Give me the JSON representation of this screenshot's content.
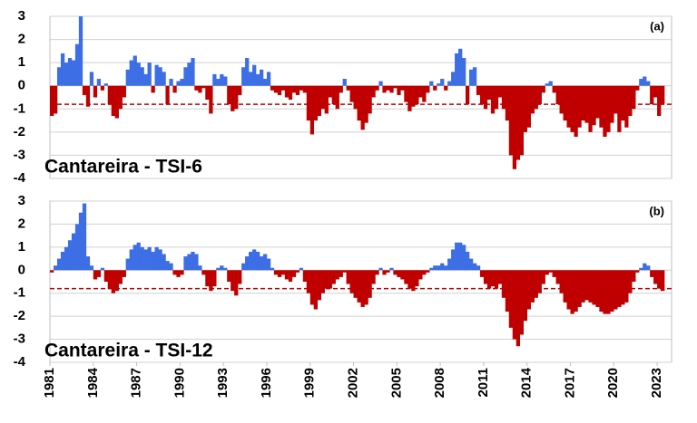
{
  "chart_data": [
    {
      "type": "bar",
      "title": "Cantareira - TSI-6",
      "panel_label": "(a)",
      "x": [
        1981,
        1981.25,
        1981.5,
        1981.75,
        1982,
        1982.25,
        1982.5,
        1982.75,
        1983,
        1983.25,
        1983.5,
        1983.75,
        1984,
        1984.25,
        1984.5,
        1984.75,
        1985,
        1985.25,
        1985.5,
        1985.75,
        1986,
        1986.25,
        1986.5,
        1986.75,
        1987,
        1987.25,
        1987.5,
        1987.75,
        1988,
        1988.25,
        1988.5,
        1988.75,
        1989,
        1989.25,
        1989.5,
        1989.75,
        1990,
        1990.25,
        1990.5,
        1990.75,
        1991,
        1991.25,
        1991.5,
        1991.75,
        1992,
        1992.25,
        1992.5,
        1992.75,
        1993,
        1993.25,
        1993.5,
        1993.75,
        1994,
        1994.25,
        1994.5,
        1994.75,
        1995,
        1995.25,
        1995.5,
        1995.75,
        1996,
        1996.25,
        1996.5,
        1996.75,
        1997,
        1997.25,
        1997.5,
        1997.75,
        1998,
        1998.25,
        1998.5,
        1998.75,
        1999,
        1999.25,
        1999.5,
        1999.75,
        2000,
        2000.25,
        2000.5,
        2000.75,
        2001,
        2001.25,
        2001.5,
        2001.75,
        2002,
        2002.25,
        2002.5,
        2002.75,
        2003,
        2003.25,
        2003.5,
        2003.75,
        2004,
        2004.25,
        2004.5,
        2004.75,
        2005,
        2005.25,
        2005.5,
        2005.75,
        2006,
        2006.25,
        2006.5,
        2006.75,
        2007,
        2007.25,
        2007.5,
        2007.75,
        2008,
        2008.25,
        2008.5,
        2008.75,
        2009,
        2009.25,
        2009.5,
        2009.75,
        2010,
        2010.25,
        2010.5,
        2010.75,
        2011,
        2011.25,
        2011.5,
        2011.75,
        2012,
        2012.25,
        2012.5,
        2012.75,
        2013,
        2013.25,
        2013.5,
        2013.75,
        2014,
        2014.25,
        2014.5,
        2014.75,
        2015,
        2015.25,
        2015.5,
        2015.75,
        2016,
        2016.25,
        2016.5,
        2016.75,
        2017,
        2017.25,
        2017.5,
        2017.75,
        2018,
        2018.25,
        2018.5,
        2018.75,
        2019,
        2019.25,
        2019.5,
        2019.75,
        2020,
        2020.25,
        2020.5,
        2020.75,
        2021,
        2021.25,
        2021.5,
        2021.75,
        2022,
        2022.25,
        2022.5,
        2022.75,
        2023,
        2023.25
      ],
      "values": [
        -1.3,
        -1.2,
        0.8,
        1.4,
        1.0,
        1.2,
        1.1,
        1.8,
        3.0,
        -0.4,
        -0.9,
        0.6,
        -0.5,
        0.3,
        -0.2,
        0.1,
        -0.8,
        -1.3,
        -1.4,
        -1.0,
        -0.5,
        0.7,
        1.1,
        1.3,
        1.0,
        0.8,
        0.5,
        1.0,
        -0.3,
        0.9,
        0.8,
        0.6,
        -0.8,
        0.3,
        -0.3,
        0.2,
        0.3,
        0.8,
        1.0,
        1.2,
        -0.2,
        -0.3,
        -0.1,
        -0.6,
        -1.2,
        0.5,
        0.3,
        0.5,
        0.4,
        -0.8,
        -1.1,
        -1.0,
        -0.4,
        0.8,
        1.2,
        0.6,
        0.9,
        0.5,
        0.7,
        0.3,
        0.6,
        -0.2,
        -0.3,
        -0.4,
        -0.2,
        -0.5,
        -0.6,
        -0.3,
        -0.4,
        -0.2,
        -0.3,
        -1.5,
        -2.1,
        -1.5,
        -1.3,
        -1.0,
        -1.2,
        -0.5,
        -0.8,
        -1.0,
        -0.3,
        0.3,
        -0.2,
        -0.7,
        -1.0,
        -1.5,
        -1.9,
        -1.6,
        -1.2,
        -0.5,
        -0.2,
        0.2,
        -0.3,
        -0.2,
        -0.3,
        -0.1,
        -0.4,
        -0.2,
        -0.7,
        -1.1,
        -0.9,
        -0.8,
        -0.5,
        -0.7,
        -0.3,
        0.2,
        -0.2,
        0.1,
        0.3,
        -0.2,
        0.2,
        0.6,
        1.4,
        1.6,
        1.2,
        -0.8,
        0.7,
        0.8,
        -0.4,
        -0.8,
        -1.0,
        -0.6,
        -1.2,
        -1.0,
        -0.5,
        -1.0,
        -1.5,
        -3.0,
        -3.6,
        -3.2,
        -3.0,
        -2.0,
        -1.8,
        -1.2,
        -1.0,
        -0.8,
        -0.3,
        0.1,
        0.2,
        -0.3,
        -0.8,
        -1.2,
        -1.5,
        -1.8,
        -2.0,
        -2.2,
        -1.8,
        -1.5,
        -1.6,
        -2.0,
        -1.7,
        -1.4,
        -1.8,
        -2.2,
        -2.0,
        -1.6,
        -1.2,
        -2.0,
        -1.5,
        -1.8,
        -1.3,
        -1.0,
        -0.2,
        0.3,
        0.4,
        0.2,
        -0.8,
        -0.5,
        -1.3,
        -0.8
      ],
      "positive_color": "#3d6ee6",
      "negative_color": "#c00000",
      "threshold": -0.8,
      "threshold_color": "#c00000",
      "xlim": [
        1981,
        2024
      ],
      "ylim": [
        -4,
        3
      ],
      "yticks": [
        3,
        2,
        1,
        0,
        -1,
        -2,
        -3,
        -4
      ],
      "grid": true
    },
    {
      "type": "bar",
      "title": "Cantareira - TSI-12",
      "panel_label": "(b)",
      "x": [
        1981,
        1981.25,
        1981.5,
        1981.75,
        1982,
        1982.25,
        1982.5,
        1982.75,
        1983,
        1983.25,
        1983.5,
        1983.75,
        1984,
        1984.25,
        1984.5,
        1984.75,
        1985,
        1985.25,
        1985.5,
        1985.75,
        1986,
        1986.25,
        1986.5,
        1986.75,
        1987,
        1987.25,
        1987.5,
        1987.75,
        1988,
        1988.25,
        1988.5,
        1988.75,
        1989,
        1989.25,
        1989.5,
        1989.75,
        1990,
        1990.25,
        1990.5,
        1990.75,
        1991,
        1991.25,
        1991.5,
        1991.75,
        1992,
        1992.25,
        1992.5,
        1992.75,
        1993,
        1993.25,
        1993.5,
        1993.75,
        1994,
        1994.25,
        1994.5,
        1994.75,
        1995,
        1995.25,
        1995.5,
        1995.75,
        1996,
        1996.25,
        1996.5,
        1996.75,
        1997,
        1997.25,
        1997.5,
        1997.75,
        1998,
        1998.25,
        1998.5,
        1998.75,
        1999,
        1999.25,
        1999.5,
        1999.75,
        2000,
        2000.25,
        2000.5,
        2000.75,
        2001,
        2001.25,
        2001.5,
        2001.75,
        2002,
        2002.25,
        2002.5,
        2002.75,
        2003,
        2003.25,
        2003.5,
        2003.75,
        2004,
        2004.25,
        2004.5,
        2004.75,
        2005,
        2005.25,
        2005.5,
        2005.75,
        2006,
        2006.25,
        2006.5,
        2006.75,
        2007,
        2007.25,
        2007.5,
        2007.75,
        2008,
        2008.25,
        2008.5,
        2008.75,
        2009,
        2009.25,
        2009.5,
        2009.75,
        2010,
        2010.25,
        2010.5,
        2010.75,
        2011,
        2011.25,
        2011.5,
        2011.75,
        2012,
        2012.25,
        2012.5,
        2012.75,
        2013,
        2013.25,
        2013.5,
        2013.75,
        2014,
        2014.25,
        2014.5,
        2014.75,
        2015,
        2015.25,
        2015.5,
        2015.75,
        2016,
        2016.25,
        2016.5,
        2016.75,
        2017,
        2017.25,
        2017.5,
        2017.75,
        2018,
        2018.25,
        2018.5,
        2018.75,
        2019,
        2019.25,
        2019.5,
        2019.75,
        2020,
        2020.25,
        2020.5,
        2020.75,
        2021,
        2021.25,
        2021.5,
        2021.75,
        2022,
        2022.25,
        2022.5,
        2022.75,
        2023,
        2023.25
      ],
      "values": [
        -0.1,
        0.2,
        0.5,
        0.8,
        1.0,
        1.3,
        1.6,
        2.0,
        2.5,
        2.9,
        0.6,
        0.2,
        -0.4,
        -0.3,
        0.1,
        -0.5,
        -0.8,
        -1.0,
        -0.9,
        -0.6,
        -0.3,
        0.5,
        0.9,
        1.1,
        1.2,
        1.0,
        0.9,
        1.0,
        0.8,
        1.0,
        0.9,
        0.7,
        0.4,
        0.3,
        -0.2,
        -0.3,
        -0.2,
        0.6,
        0.7,
        0.8,
        0.7,
        0.2,
        -0.2,
        -0.7,
        -0.9,
        -0.7,
        0.1,
        0.2,
        0.1,
        -0.5,
        -0.9,
        -1.1,
        -0.6,
        0.3,
        0.6,
        0.8,
        0.9,
        0.8,
        0.6,
        0.7,
        0.5,
        0.1,
        -0.2,
        -0.3,
        -0.2,
        -0.4,
        -0.5,
        -0.3,
        -0.1,
        0.1,
        -0.5,
        -1.0,
        -1.5,
        -1.7,
        -1.3,
        -1.0,
        -0.8,
        -0.8,
        -0.6,
        -0.4,
        -0.3,
        -0.1,
        -0.6,
        -1.0,
        -1.2,
        -1.4,
        -1.6,
        -1.5,
        -1.2,
        -0.6,
        -0.2,
        0.1,
        -0.2,
        -0.1,
        0.1,
        -0.2,
        -0.3,
        -0.4,
        -0.6,
        -0.8,
        -0.9,
        -0.7,
        -0.4,
        -0.2,
        -0.1,
        0.1,
        0.2,
        0.2,
        0.3,
        0.2,
        0.5,
        0.9,
        1.2,
        1.2,
        1.1,
        0.8,
        0.5,
        0.3,
        0.2,
        -0.3,
        -0.6,
        -0.8,
        -0.7,
        -0.8,
        -0.6,
        -1.2,
        -1.8,
        -2.5,
        -3.0,
        -3.3,
        -2.8,
        -2.2,
        -1.7,
        -1.4,
        -1.2,
        -1.0,
        -0.6,
        -0.2,
        -0.1,
        -0.3,
        -0.6,
        -1.0,
        -1.4,
        -1.7,
        -1.9,
        -1.8,
        -1.6,
        -1.4,
        -1.3,
        -1.4,
        -1.5,
        -1.6,
        -1.8,
        -1.9,
        -1.9,
        -1.8,
        -1.7,
        -1.6,
        -1.5,
        -1.4,
        -1.0,
        -0.5,
        -0.1,
        0.1,
        0.3,
        0.2,
        -0.3,
        -0.6,
        -0.8,
        -0.9
      ],
      "positive_color": "#3d6ee6",
      "negative_color": "#c00000",
      "threshold": -0.8,
      "threshold_color": "#c00000",
      "xlim": [
        1981,
        2024
      ],
      "ylim": [
        -4,
        3
      ],
      "yticks": [
        3,
        2,
        1,
        0,
        -1,
        -2,
        -3,
        -4
      ],
      "xticks": [
        1981,
        1984,
        1987,
        1990,
        1993,
        1996,
        1999,
        2002,
        2005,
        2008,
        2011,
        2014,
        2017,
        2020,
        2023
      ],
      "grid": true
    }
  ]
}
